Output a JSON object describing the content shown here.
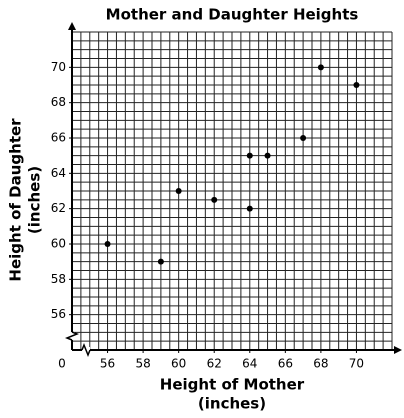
{
  "chart_data": {
    "type": "scatter",
    "title": "Mother and Daughter Heights",
    "xlabel": [
      "Height of Mother",
      "(inches)"
    ],
    "ylabel": [
      "Height of Daughter",
      "(inches)"
    ],
    "origin_label": "0",
    "x": [
      56,
      59,
      60,
      62,
      64,
      64,
      65,
      67,
      68,
      70
    ],
    "values": [
      60,
      59,
      63,
      62.5,
      65,
      62,
      65,
      66,
      70,
      69
    ],
    "color": "#000000",
    "xlim": [
      54,
      72
    ],
    "ylim": [
      54,
      72
    ],
    "xticks": [
      56,
      58,
      60,
      62,
      64,
      66,
      68,
      70
    ],
    "yticks": [
      56,
      58,
      60,
      62,
      64,
      66,
      68,
      70
    ],
    "grid": true,
    "grid_step": 0.5
  }
}
